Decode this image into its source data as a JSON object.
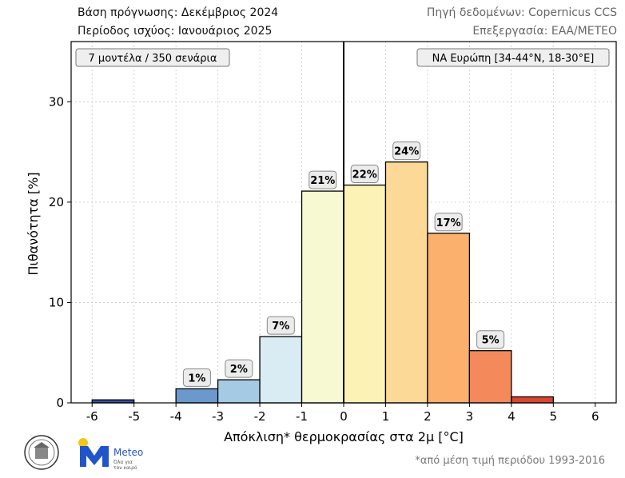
{
  "header": {
    "forecast_base": "Βάση πρόγνωσης: Δεκέμβριος 2024",
    "validity_period": "Περίοδος ισχύος: Ιανουάριος 2025",
    "data_source": "Πηγή δεδομένων: Copernicus CCS",
    "processing": "Επεξεργασία: ΕΑΑ/METEO"
  },
  "footnote": "*από μέση τιμή περιόδου 1993-2016",
  "logos": {
    "meteo_name": "Meteo",
    "meteo_tagline_1": "Όλα για",
    "meteo_tagline_2": "τον καιρό",
    "seal_icon": "observatory-seal-icon",
    "meteo_icon": "meteo-m-logo-icon"
  },
  "chart_data": {
    "type": "bar",
    "xlabel": "Απόκλιση* θερμοκρασίας στα 2μ [°C]",
    "ylabel": "Πιθανότητα [%]",
    "xlim": [
      -6.5,
      6.5
    ],
    "ylim": [
      0,
      36
    ],
    "x_ticks": [
      -6,
      -5,
      -4,
      -3,
      -2,
      -1,
      0,
      1,
      2,
      3,
      4,
      5,
      6
    ],
    "y_ticks": [
      0,
      10,
      20,
      30
    ],
    "grid": true,
    "zero_line": 0,
    "annotation_left": "7 μοντέλα / 350 σενάρια",
    "annotation_right": "ΝΑ Ευρώπη [34-44°N, 18-30°E]",
    "bars": [
      {
        "x0": -6,
        "x1": -5,
        "value": 0.3,
        "label": "",
        "color": "#3a4f9e"
      },
      {
        "x0": -5,
        "x1": -4,
        "value": 0.0,
        "label": "",
        "color": "#5b87c0"
      },
      {
        "x0": -4,
        "x1": -3,
        "value": 1.4,
        "label": "1%",
        "color": "#6b99cc"
      },
      {
        "x0": -3,
        "x1": -2,
        "value": 2.3,
        "label": "2%",
        "color": "#a5cbe4"
      },
      {
        "x0": -2,
        "x1": -1,
        "value": 6.6,
        "label": "7%",
        "color": "#d9ecf4"
      },
      {
        "x0": -1,
        "x1": 0,
        "value": 21.1,
        "label": "21%",
        "color": "#f6f9d2"
      },
      {
        "x0": 0,
        "x1": 1,
        "value": 21.7,
        "label": "22%",
        "color": "#fdf2b6"
      },
      {
        "x0": 1,
        "x1": 2,
        "value": 24.0,
        "label": "24%",
        "color": "#fcd996"
      },
      {
        "x0": 2,
        "x1": 3,
        "value": 16.9,
        "label": "17%",
        "color": "#fbb06e"
      },
      {
        "x0": 3,
        "x1": 4,
        "value": 5.2,
        "label": "5%",
        "color": "#f4895c"
      },
      {
        "x0": 4,
        "x1": 5,
        "value": 0.6,
        "label": "",
        "color": "#dc4631"
      },
      {
        "x0": 5,
        "x1": 6,
        "value": 0.0,
        "label": "",
        "color": "#b51d2a"
      }
    ]
  }
}
